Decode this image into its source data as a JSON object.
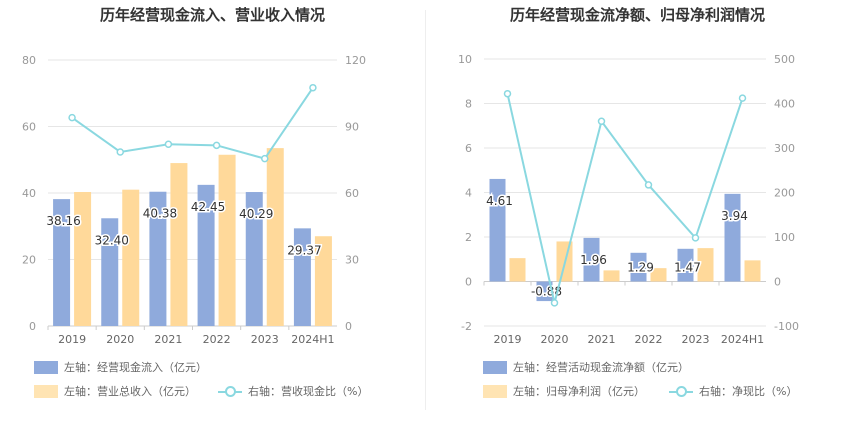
{
  "chart_data": [
    {
      "type": "bar",
      "title": "历年经营现金流入、营业收入情况",
      "categories": [
        "2019",
        "2020",
        "2021",
        "2022",
        "2023",
        "2024H1"
      ],
      "y_left": {
        "ticks": [
          "0",
          "20",
          "40",
          "60",
          "80"
        ],
        "min": 0,
        "max": 80
      },
      "y_right": {
        "ticks": [
          "0",
          "30",
          "60",
          "90",
          "120"
        ],
        "min": 0,
        "max": 120
      },
      "series": [
        {
          "name": "左轴：经营现金流入（亿元）",
          "kind": "bar",
          "axis": "left",
          "color": "#8faadc",
          "values": [
            38.16,
            32.4,
            40.38,
            42.45,
            40.29,
            29.37
          ],
          "labels": [
            "38.16",
            "32.40",
            "40.38",
            "42.45",
            "40.29",
            "29.37"
          ]
        },
        {
          "name": "左轴：营业总收入（亿元）",
          "kind": "bar",
          "axis": "left",
          "color": "#ffd99a",
          "values": [
            40.3,
            41.0,
            49.0,
            51.5,
            53.5,
            27.0
          ]
        },
        {
          "name": "右轴：营收现金比（%）",
          "kind": "line",
          "axis": "right",
          "color": "#8ad8e0",
          "values": [
            94.0,
            78.5,
            82.0,
            81.5,
            75.5,
            107.5
          ]
        }
      ]
    },
    {
      "type": "bar",
      "title": "历年经营现金流净额、归母净利润情况",
      "categories": [
        "2019",
        "2020",
        "2021",
        "2022",
        "2023",
        "2024H1"
      ],
      "y_left": {
        "ticks": [
          "-2",
          "0",
          "2",
          "4",
          "6",
          "8",
          "10"
        ],
        "min": -2,
        "max": 10
      },
      "y_right": {
        "ticks": [
          "-100",
          "0",
          "100",
          "200",
          "300",
          "400",
          "500"
        ],
        "min": -100,
        "max": 500
      },
      "series": [
        {
          "name": "左轴：经营活动现金流净额（亿元）",
          "kind": "bar",
          "axis": "left",
          "color": "#8faadc",
          "values": [
            4.61,
            -0.88,
            1.96,
            1.29,
            1.47,
            3.94
          ],
          "labels": [
            "4.61",
            "-0.88",
            "1.96",
            "1.29",
            "1.47",
            "3.94"
          ]
        },
        {
          "name": "左轴：归母净利润（亿元）",
          "kind": "bar",
          "axis": "left",
          "color": "#ffd99a",
          "values": [
            1.05,
            1.8,
            0.5,
            0.6,
            1.5,
            0.95
          ]
        },
        {
          "name": "右轴：净现比（%）",
          "kind": "line",
          "axis": "right",
          "color": "#8ad8e0",
          "values": [
            422,
            -48,
            360,
            217,
            98,
            412
          ]
        }
      ]
    }
  ]
}
